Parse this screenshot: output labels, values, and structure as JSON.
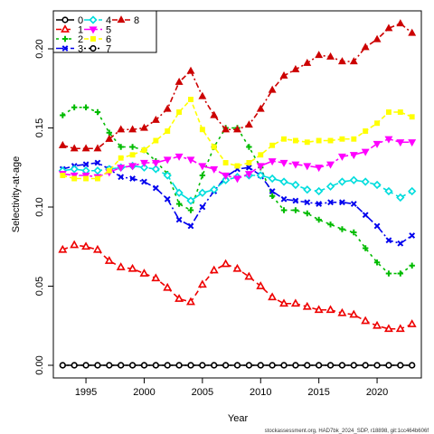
{
  "chart_data": {
    "type": "line",
    "xlabel": "Year",
    "ylabel": "Selectivity-at-age",
    "xlim": [
      1992.2,
      2023.8
    ],
    "ylim": [
      -0.008,
      0.224
    ],
    "x_ticks": [
      "1995",
      "2000",
      "2005",
      "2010",
      "2015",
      "2020"
    ],
    "y_ticks": [
      "0.00",
      "0.05",
      "0.10",
      "0.15",
      "0.20"
    ],
    "legend_position": "top-left",
    "footer": "stockassessment.org, HAD7bk_2024_SDP, r18898, git:1cc464b606f",
    "x": [
      1993,
      1994,
      1995,
      1996,
      1997,
      1998,
      1999,
      2000,
      2001,
      2002,
      2003,
      2004,
      2005,
      2006,
      2007,
      2008,
      2009,
      2010,
      2011,
      2012,
      2013,
      2014,
      2015,
      2016,
      2017,
      2018,
      2019,
      2020,
      2021,
      2022,
      2023
    ],
    "series": [
      {
        "name": "0",
        "color": "#000000",
        "dash": "",
        "marker": "circle-open",
        "values": [
          0,
          0,
          0,
          0,
          0,
          0,
          0,
          0,
          0,
          0,
          0,
          0,
          0,
          0,
          0,
          0,
          0,
          0,
          0,
          0,
          0,
          0,
          0,
          0,
          0,
          0,
          0,
          0,
          0,
          0,
          0
        ]
      },
      {
        "name": "1",
        "color": "#ee0000",
        "dash": "6,4",
        "marker": "triangle-open",
        "values": [
          0.073,
          0.076,
          0.075,
          0.073,
          0.066,
          0.062,
          0.061,
          0.058,
          0.055,
          0.049,
          0.042,
          0.04,
          0.051,
          0.06,
          0.064,
          0.061,
          0.056,
          0.05,
          0.043,
          0.039,
          0.039,
          0.037,
          0.035,
          0.035,
          0.033,
          0.032,
          0.028,
          0.025,
          0.023,
          0.023,
          0.026
        ]
      },
      {
        "name": "2",
        "color": "#00bb00",
        "dash": "3,4",
        "marker": "plus",
        "values": [
          0.158,
          0.163,
          0.163,
          0.16,
          0.147,
          0.138,
          0.138,
          0.136,
          0.129,
          0.121,
          0.102,
          0.098,
          0.12,
          0.138,
          0.15,
          0.15,
          0.138,
          0.125,
          0.107,
          0.098,
          0.098,
          0.096,
          0.092,
          0.089,
          0.086,
          0.084,
          0.074,
          0.065,
          0.058,
          0.058,
          0.063
        ]
      },
      {
        "name": "3",
        "color": "#0000ee",
        "dash": "8,3,2,3",
        "marker": "x",
        "values": [
          0.124,
          0.126,
          0.127,
          0.128,
          0.124,
          0.119,
          0.118,
          0.116,
          0.112,
          0.105,
          0.092,
          0.088,
          0.1,
          0.11,
          0.119,
          0.124,
          0.125,
          0.12,
          0.11,
          0.105,
          0.104,
          0.103,
          0.102,
          0.103,
          0.103,
          0.102,
          0.095,
          0.088,
          0.079,
          0.077,
          0.082
        ]
      },
      {
        "name": "4",
        "color": "#00dddd",
        "dash": "12,4",
        "marker": "diamond-open",
        "values": [
          0.123,
          0.124,
          0.123,
          0.123,
          0.124,
          0.125,
          0.126,
          0.125,
          0.124,
          0.12,
          0.109,
          0.104,
          0.109,
          0.111,
          0.117,
          0.119,
          0.12,
          0.12,
          0.118,
          0.116,
          0.114,
          0.111,
          0.11,
          0.113,
          0.116,
          0.117,
          0.116,
          0.114,
          0.11,
          0.106,
          0.11
        ]
      },
      {
        "name": "5",
        "color": "#ff00ff",
        "dash": "9,3,3,3",
        "marker": "triangle-down",
        "values": [
          0.121,
          0.12,
          0.12,
          0.119,
          0.122,
          0.125,
          0.126,
          0.128,
          0.128,
          0.13,
          0.132,
          0.13,
          0.126,
          0.124,
          0.12,
          0.118,
          0.121,
          0.126,
          0.129,
          0.128,
          0.127,
          0.126,
          0.125,
          0.127,
          0.132,
          0.133,
          0.135,
          0.14,
          0.143,
          0.141,
          0.141
        ]
      },
      {
        "name": "6",
        "color": "#ffff00",
        "dash": "5,3",
        "marker": "square",
        "values": [
          0.12,
          0.118,
          0.118,
          0.118,
          0.123,
          0.131,
          0.133,
          0.136,
          0.142,
          0.148,
          0.16,
          0.168,
          0.149,
          0.138,
          0.128,
          0.126,
          0.128,
          0.133,
          0.139,
          0.143,
          0.142,
          0.141,
          0.142,
          0.142,
          0.143,
          0.143,
          0.148,
          0.153,
          0.16,
          0.16,
          0.157
        ]
      },
      {
        "name": "7",
        "color": "#000000",
        "dash": "2,3",
        "marker": "circle-open",
        "values": [
          0,
          0,
          0,
          0,
          0,
          0,
          0,
          0,
          0,
          0,
          0,
          0,
          0,
          0,
          0,
          0,
          0,
          0,
          0,
          0,
          0,
          0,
          0,
          0,
          0,
          0,
          0,
          0,
          0,
          0,
          0
        ]
      },
      {
        "name": "8",
        "color": "#cc0000",
        "dash": "6,3,2,3",
        "marker": "triangle-filled",
        "values": [
          0.139,
          0.137,
          0.137,
          0.137,
          0.143,
          0.149,
          0.149,
          0.15,
          0.155,
          0.162,
          0.179,
          0.186,
          0.17,
          0.158,
          0.149,
          0.149,
          0.152,
          0.162,
          0.174,
          0.183,
          0.187,
          0.191,
          0.196,
          0.195,
          0.192,
          0.192,
          0.201,
          0.206,
          0.213,
          0.216,
          0.21
        ]
      }
    ]
  }
}
